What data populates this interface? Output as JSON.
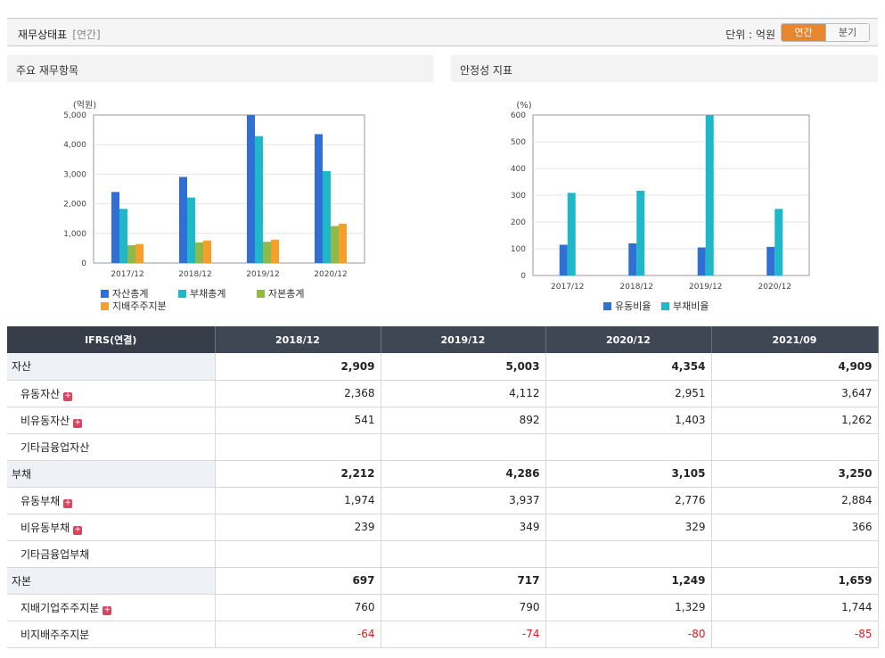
{
  "header": {
    "title": "재무상태표",
    "subtitle": "[연간]",
    "unit_label": "단위 : 억원",
    "toggle_annual": "연간",
    "toggle_quarter": "분기"
  },
  "chart1": {
    "panel_title": "주요 재무항목"
  },
  "chart2": {
    "panel_title": "안정성 지표"
  },
  "chart_data": [
    {
      "type": "bar",
      "ylabel": "(억원)",
      "ylim": [
        0,
        5000
      ],
      "yticks": [
        "0",
        "1,000",
        "2,000",
        "3,000",
        "4,000",
        "5,000"
      ],
      "categories": [
        "2017/12",
        "2018/12",
        "2019/12",
        "2020/12"
      ],
      "series": [
        {
          "name": "자산총계",
          "values": [
            2400,
            2909,
            5003,
            4354
          ],
          "color": "#2f6fd6"
        },
        {
          "name": "부채총계",
          "values": [
            1830,
            2212,
            4286,
            3105
          ],
          "color": "#1fb8c9"
        },
        {
          "name": "자본총계",
          "values": [
            600,
            697,
            717,
            1249
          ],
          "color": "#8fba4a"
        },
        {
          "name": "지배주주지분",
          "values": [
            640,
            760,
            790,
            1329
          ],
          "color": "#f6a02a"
        }
      ],
      "grid": true,
      "legend": "bottom"
    },
    {
      "type": "bar",
      "ylabel": "(%)",
      "ylim": [
        0,
        600
      ],
      "yticks": [
        "0",
        "100",
        "200",
        "300",
        "400",
        "500",
        "600"
      ],
      "categories": [
        "2017/12",
        "2018/12",
        "2019/12",
        "2020/12"
      ],
      "series": [
        {
          "name": "유동비율",
          "values": [
            115,
            120,
            105,
            107
          ],
          "color": "#2f6fd6"
        },
        {
          "name": "부채비율",
          "values": [
            309,
            317,
            600,
            249
          ],
          "color": "#1fb8c9"
        }
      ],
      "grid": true,
      "legend": "bottom"
    }
  ],
  "table": {
    "header": [
      "IFRS(연결)",
      "2018/12",
      "2019/12",
      "2020/12",
      "2021/09"
    ],
    "rows": [
      {
        "label": "자산",
        "level": 0,
        "expand": false,
        "values": [
          "2,909",
          "5,003",
          "4,354",
          "4,909"
        ]
      },
      {
        "label": "유동자산",
        "level": 1,
        "expand": true,
        "values": [
          "2,368",
          "4,112",
          "2,951",
          "3,647"
        ]
      },
      {
        "label": "비유동자산",
        "level": 1,
        "expand": true,
        "values": [
          "541",
          "892",
          "1,403",
          "1,262"
        ]
      },
      {
        "label": "기타금융업자산",
        "level": 1,
        "expand": false,
        "values": [
          "",
          "",
          "",
          ""
        ]
      },
      {
        "label": "부채",
        "level": 0,
        "expand": false,
        "values": [
          "2,212",
          "4,286",
          "3,105",
          "3,250"
        ]
      },
      {
        "label": "유동부채",
        "level": 1,
        "expand": true,
        "values": [
          "1,974",
          "3,937",
          "2,776",
          "2,884"
        ]
      },
      {
        "label": "비유동부채",
        "level": 1,
        "expand": true,
        "values": [
          "239",
          "349",
          "329",
          "366"
        ]
      },
      {
        "label": "기타금융업부채",
        "level": 1,
        "expand": false,
        "values": [
          "",
          "",
          "",
          ""
        ]
      },
      {
        "label": "자본",
        "level": 0,
        "expand": false,
        "values": [
          "697",
          "717",
          "1,249",
          "1,659"
        ]
      },
      {
        "label": "지배기업주주지분",
        "level": 1,
        "expand": true,
        "values": [
          "760",
          "790",
          "1,329",
          "1,744"
        ]
      },
      {
        "label": "비지배주주지분",
        "level": 1,
        "expand": false,
        "values": [
          "-64",
          "-74",
          "-80",
          "-85"
        ],
        "negative": true
      }
    ],
    "expand_glyph": "+"
  }
}
